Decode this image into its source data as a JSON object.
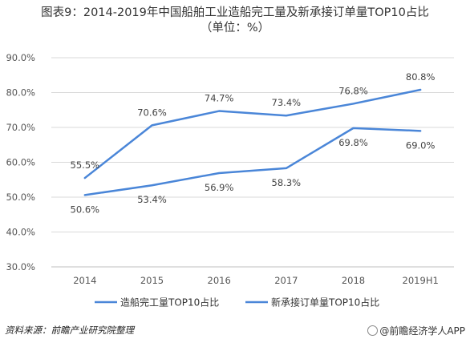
{
  "chart_data": {
    "type": "line",
    "title": "图表9：2014-2019年中国船舶工业造船完工量及新承接订单量TOP10占比",
    "subtitle": "（单位：%）",
    "categories": [
      "2014",
      "2015",
      "2016",
      "2017",
      "2018",
      "2019H1"
    ],
    "series": [
      {
        "name": "造船完工量TOP10占比",
        "values": [
          50.6,
          53.4,
          56.9,
          58.3,
          69.8,
          69.0
        ],
        "labels": [
          "50.6%",
          "53.4%",
          "56.9%",
          "58.3%",
          "69.8%",
          "69.0%"
        ],
        "label_position": "below"
      },
      {
        "name": "新承接订单量TOP10占比",
        "values": [
          55.5,
          70.6,
          74.7,
          73.4,
          76.8,
          80.8
        ],
        "labels": [
          "55.5%",
          "70.6%",
          "74.7%",
          "73.4%",
          "76.8%",
          "80.8%"
        ],
        "label_position": "above"
      }
    ],
    "ylim": [
      30,
      90
    ],
    "yticks": [
      30,
      40,
      50,
      60,
      70,
      80,
      90
    ],
    "ytick_labels": [
      "30.0%",
      "40.0%",
      "50.0%",
      "60.0%",
      "70.0%",
      "80.0%",
      "90.0%"
    ],
    "xlabel": "",
    "ylabel": "",
    "grid": true,
    "legend": "bottom",
    "line_color": "#4a86d8"
  },
  "footer": {
    "source": "资料来源：前瞻产业研究院整理",
    "brand": "@前瞻经济学人APP"
  }
}
